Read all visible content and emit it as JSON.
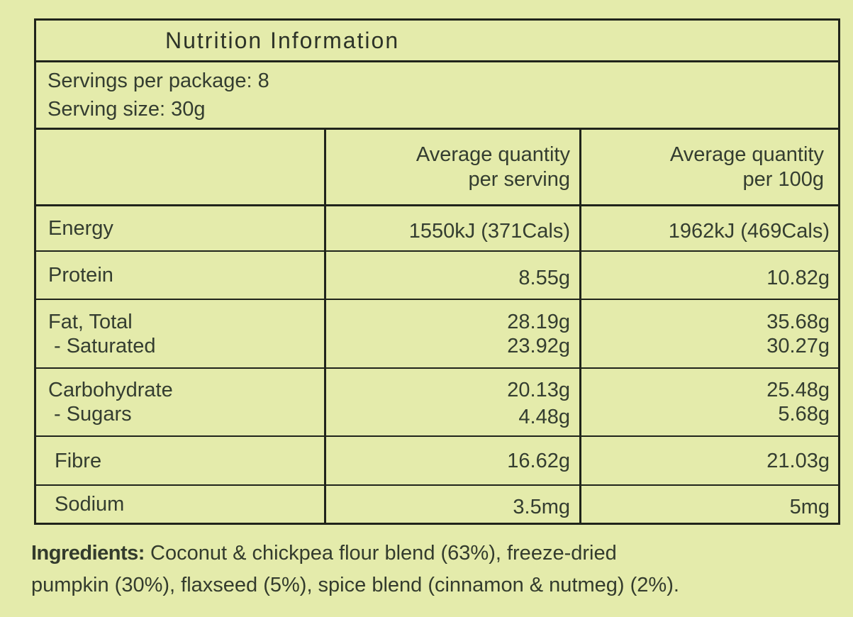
{
  "colors": {
    "background": "#e4ebab",
    "line": "#20241b",
    "text": "#343d30"
  },
  "header": {
    "title": "Nutrition Information"
  },
  "serving_info": {
    "servings_per_package": "Servings per package: 8",
    "serving_size": "Serving size: 30g"
  },
  "table": {
    "columns": {
      "per_serving_line1": "Average quantity",
      "per_serving_line2": "per serving",
      "per_100g_line1": "Average quantity",
      "per_100g_line2": "per 100g"
    },
    "rows": [
      {
        "label": "Energy",
        "per_serving": "1550kJ (371Cals)",
        "per_100g": "1962kJ (469Cals)"
      },
      {
        "label": "Protein",
        "per_serving": "8.55g",
        "per_100g": "10.82g"
      },
      {
        "label": "Fat, Total",
        "sublabel": "- Saturated",
        "per_serving": "28.19g",
        "per_serving_sub": "23.92g",
        "per_100g": "35.68g",
        "per_100g_sub": "30.27g"
      },
      {
        "label": "Carbohydrate",
        "sublabel": "- Sugars",
        "per_serving": "20.13g",
        "per_serving_sub": "4.48g",
        "per_100g": "25.48g",
        "per_100g_sub": "5.68g"
      },
      {
        "label": "Fibre",
        "per_serving": "16.62g",
        "per_100g": "21.03g"
      },
      {
        "label": "Sodium",
        "per_serving": "3.5mg",
        "per_100g": "5mg"
      }
    ]
  },
  "ingredients": {
    "label": "Ingredients:",
    "line1": "Coconut & chickpea flour blend (63%), freeze-dried",
    "line2": "pumpkin (30%), flaxseed (5%), spice blend (cinnamon & nutmeg) (2%)."
  }
}
